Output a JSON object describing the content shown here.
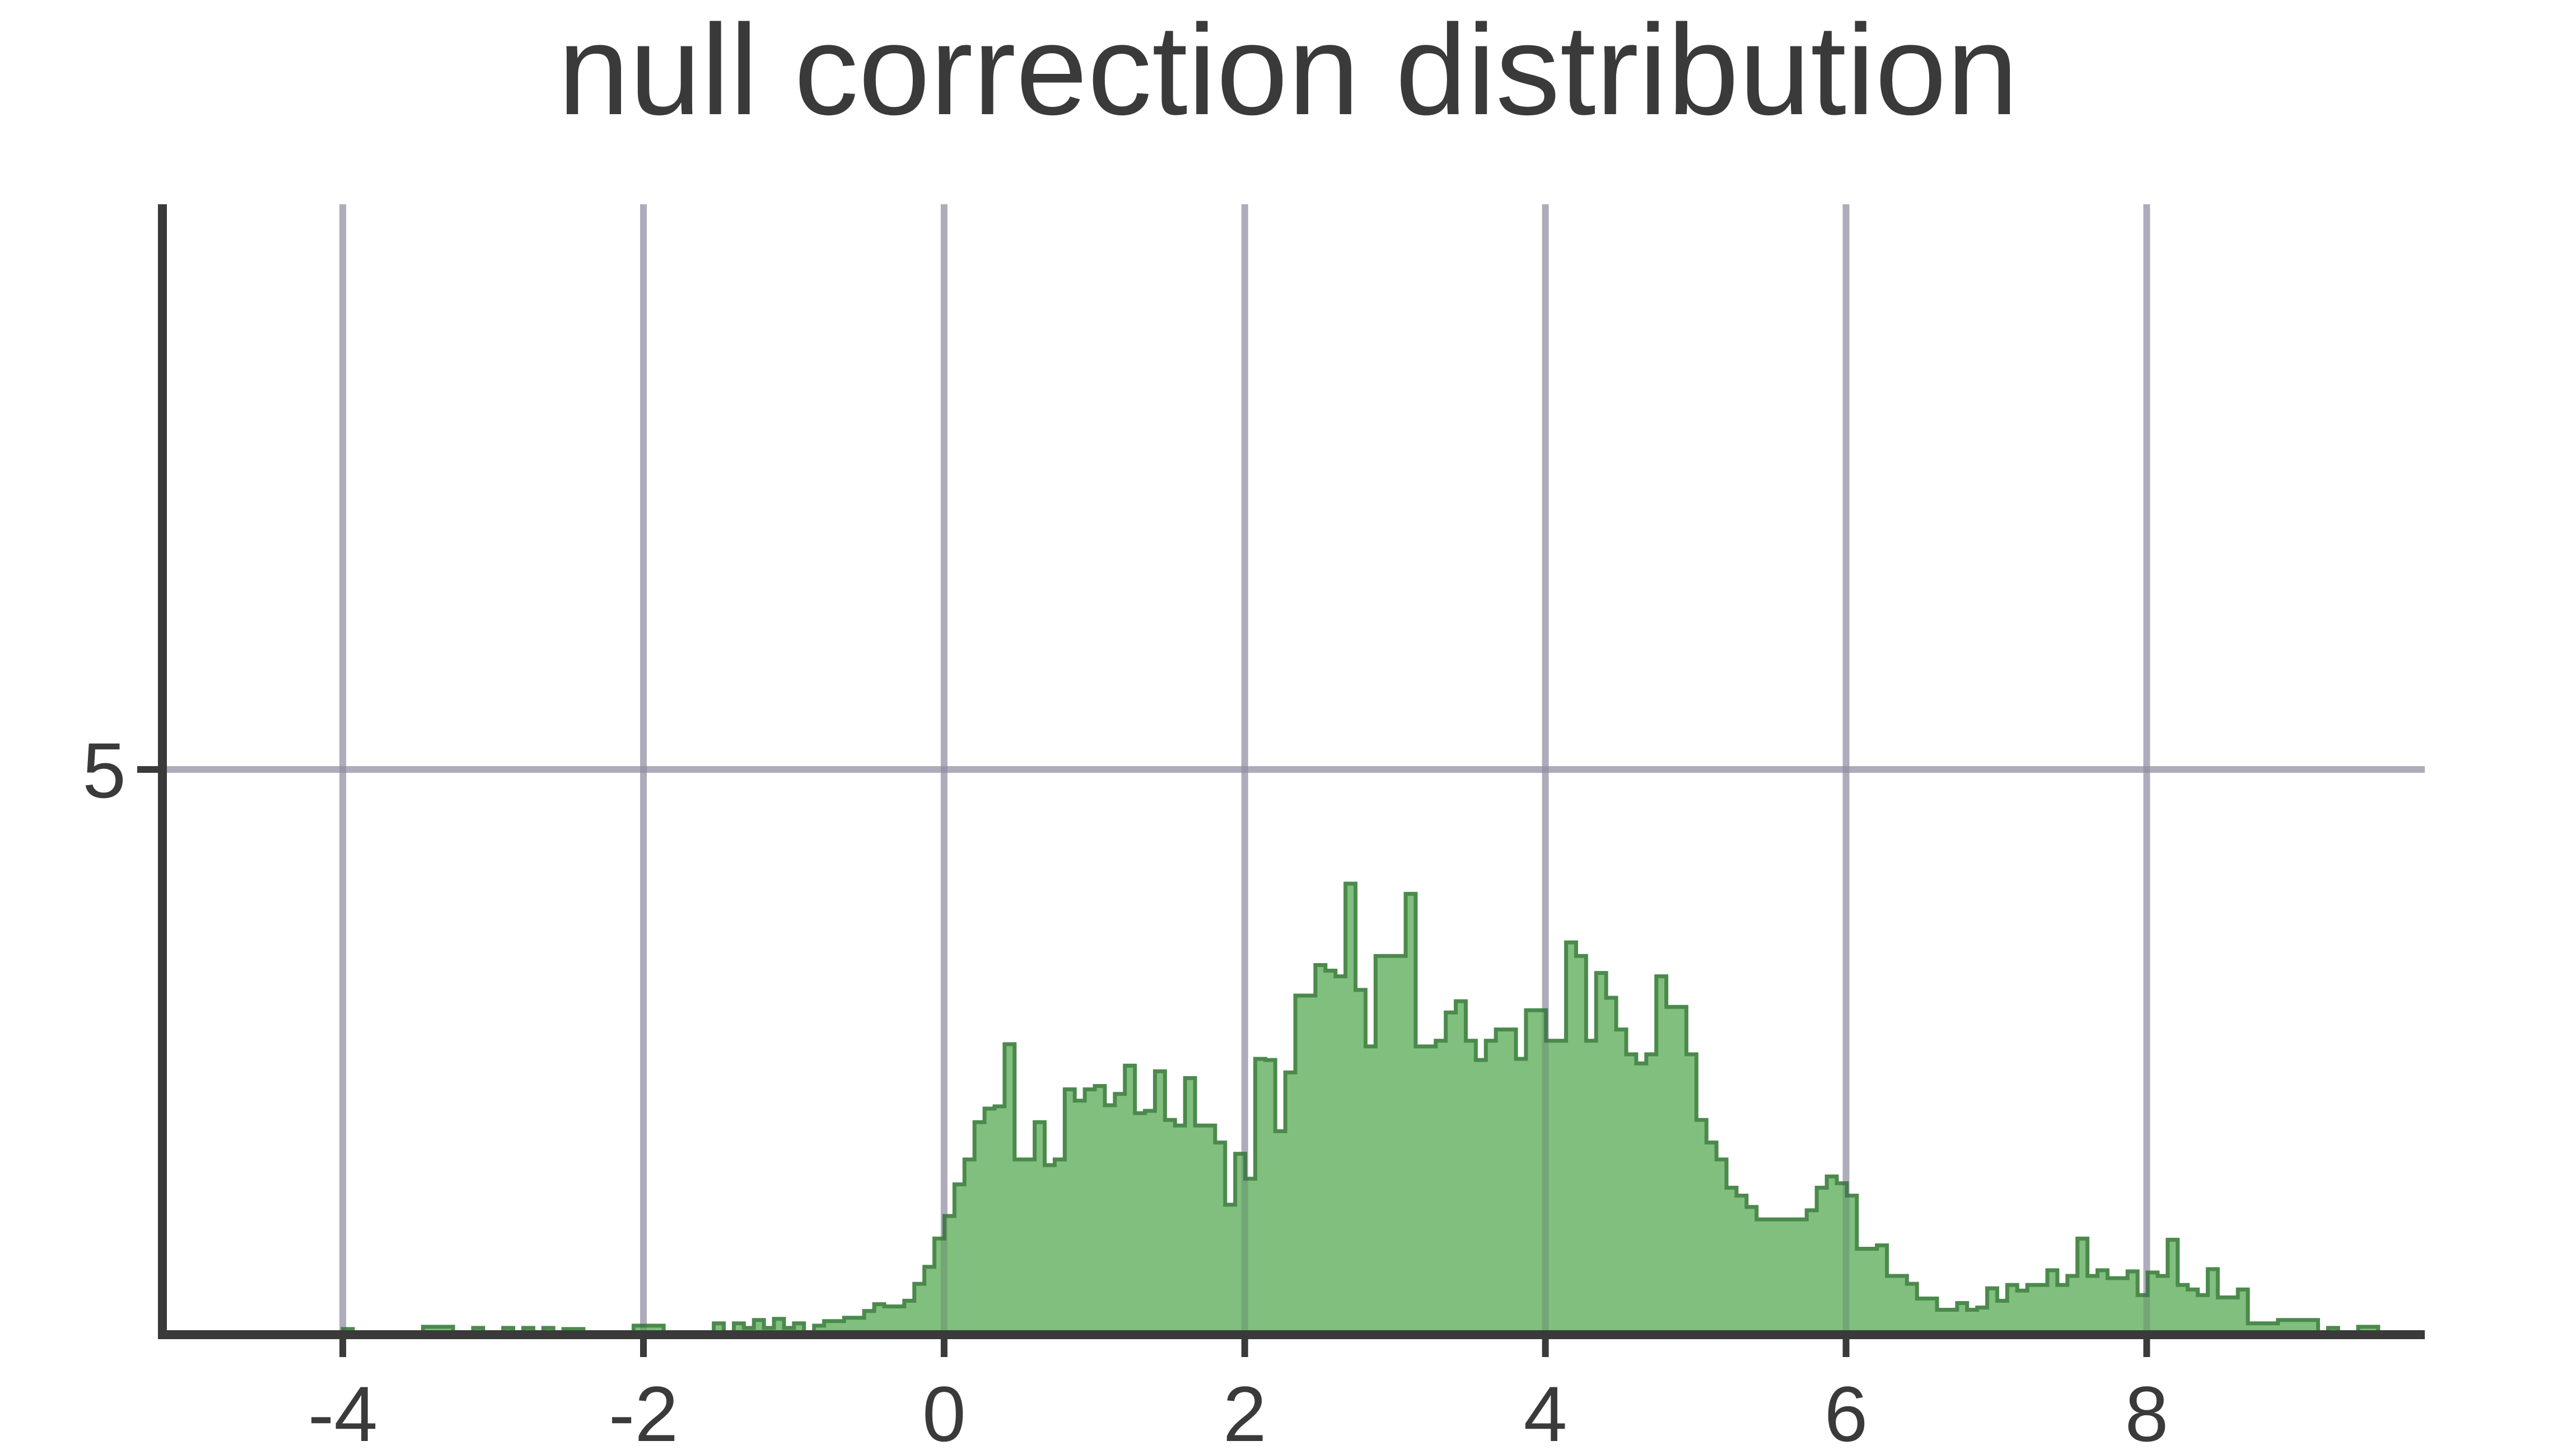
{
  "chart_data": {
    "type": "histogram",
    "title": "null correction distribution",
    "xlabel": "",
    "ylabel": "",
    "xlim": [
      -5.2,
      9.85
    ],
    "ylim": [
      0,
      10
    ],
    "xticks": [
      -4,
      -2,
      0,
      2,
      4,
      6,
      8
    ],
    "xtick_labels": [
      "-4",
      "-2",
      "0",
      "2",
      "4",
      "6",
      "8"
    ],
    "yticks": [
      5
    ],
    "ytick_labels": [
      "5"
    ],
    "grid": true,
    "colors": {
      "fill": "#81bf7e",
      "edge": "#4b8a4c",
      "grid": "#c9c6d0",
      "axis": "#3a3a3a"
    },
    "bin_start": -4.2,
    "bin_width": 0.0667,
    "counts": [
      0.0,
      0.0,
      0.0,
      0.05,
      0.0,
      0.0,
      0.0,
      0.0,
      0.0,
      0.0,
      0.0,
      0.07,
      0.07,
      0.07,
      0.0,
      0.0,
      0.06,
      0.0,
      0.0,
      0.06,
      0.0,
      0.06,
      0.0,
      0.06,
      0.0,
      0.05,
      0.05,
      0.0,
      0.0,
      0.0,
      0.0,
      0.0,
      0.08,
      0.08,
      0.08,
      0.0,
      0.0,
      0.0,
      0.0,
      0.0,
      0.1,
      0.0,
      0.1,
      0.06,
      0.13,
      0.06,
      0.14,
      0.06,
      0.1,
      0.0,
      0.08,
      0.12,
      0.12,
      0.15,
      0.15,
      0.21,
      0.27,
      0.25,
      0.25,
      0.3,
      0.45,
      0.6,
      0.85,
      1.05,
      1.33,
      1.55,
      1.88,
      2.0,
      2.02,
      2.57,
      1.55,
      1.55,
      1.88,
      1.5,
      1.55,
      2.17,
      2.07,
      2.17,
      2.2,
      2.03,
      2.13,
      2.38,
      1.96,
      1.98,
      2.33,
      1.9,
      1.85,
      2.27,
      1.85,
      1.85,
      1.7,
      1.15,
      1.6,
      1.38,
      2.44,
      2.43,
      1.8,
      2.32,
      3.0,
      3.0,
      3.27,
      3.22,
      3.17,
      3.99,
      3.05,
      2.55,
      3.35,
      3.35,
      3.35,
      3.9,
      2.55,
      2.55,
      2.6,
      2.85,
      2.95,
      2.6,
      2.43,
      2.6,
      2.7,
      2.7,
      2.44,
      2.87,
      2.87,
      2.6,
      2.6,
      3.47,
      3.35,
      2.6,
      3.2,
      2.98,
      2.7,
      2.48,
      2.4,
      2.48,
      3.17,
      2.9,
      2.9,
      2.48,
      1.9,
      1.7,
      1.55,
      1.3,
      1.23,
      1.13,
      1.02,
      1.02,
      1.02,
      1.02,
      1.02,
      1.1,
      1.3,
      1.4,
      1.34,
      1.23,
      0.76,
      0.76,
      0.79,
      0.52,
      0.52,
      0.45,
      0.32,
      0.32,
      0.22,
      0.22,
      0.28,
      0.22,
      0.24,
      0.41,
      0.3,
      0.44,
      0.39,
      0.44,
      0.44,
      0.57,
      0.44,
      0.52,
      0.85,
      0.52,
      0.57,
      0.5,
      0.5,
      0.56,
      0.35,
      0.55,
      0.52,
      0.84,
      0.44,
      0.4,
      0.35,
      0.58,
      0.33,
      0.33,
      0.4,
      0.1,
      0.1,
      0.1,
      0.13,
      0.13,
      0.13,
      0.13,
      0.0,
      0.06,
      0.0,
      0.0,
      0.07,
      0.07
    ]
  }
}
